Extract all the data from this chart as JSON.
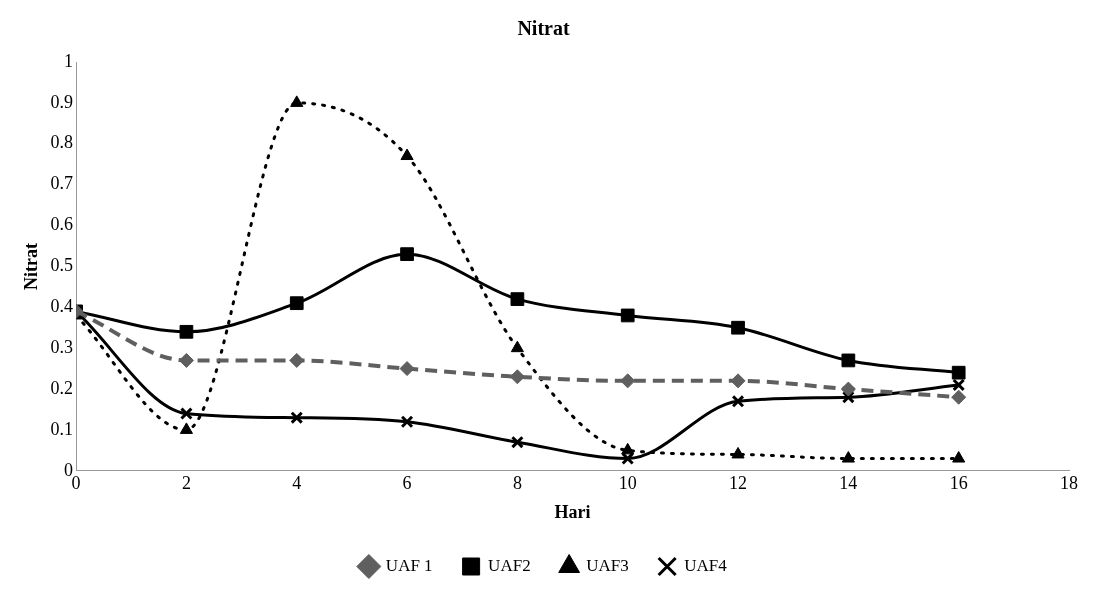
{
  "chart_data": {
    "type": "line",
    "title": "Nitrat",
    "xlabel": "Hari",
    "ylabel": "Nitrat",
    "x": [
      0,
      2,
      4,
      6,
      8,
      10,
      12,
      14,
      16
    ],
    "series": [
      {
        "name": "UAF 1",
        "color": "#5f5f5f",
        "marker": "diamond",
        "line_style": "dashed",
        "values": [
          0.39,
          0.27,
          0.27,
          0.25,
          0.23,
          0.22,
          0.22,
          0.2,
          0.18
        ]
      },
      {
        "name": "UAF2",
        "color": "#000000",
        "marker": "square",
        "line_style": "solid",
        "values": [
          0.39,
          0.34,
          0.41,
          0.53,
          0.42,
          0.38,
          0.35,
          0.27,
          0.24
        ]
      },
      {
        "name": "UAF3",
        "color": "#000000",
        "marker": "triangle",
        "line_style": "dotted",
        "values": [
          0.38,
          0.1,
          0.9,
          0.77,
          0.3,
          0.05,
          0.04,
          0.03,
          0.03
        ]
      },
      {
        "name": "UAF4",
        "color": "#000000",
        "marker": "cross",
        "line_style": "solid",
        "values": [
          0.39,
          0.14,
          0.13,
          0.12,
          0.07,
          0.03,
          0.17,
          0.18,
          0.21
        ]
      }
    ],
    "xlim": [
      0,
      18
    ],
    "xticks": [
      0,
      2,
      4,
      6,
      8,
      10,
      12,
      14,
      16,
      18
    ],
    "ylim": [
      0,
      1
    ],
    "yticks": [
      0,
      0.1,
      0.2,
      0.3,
      0.4,
      0.5,
      0.6,
      0.7,
      0.8,
      0.9,
      1
    ],
    "grid": false,
    "legend": "bottom"
  }
}
